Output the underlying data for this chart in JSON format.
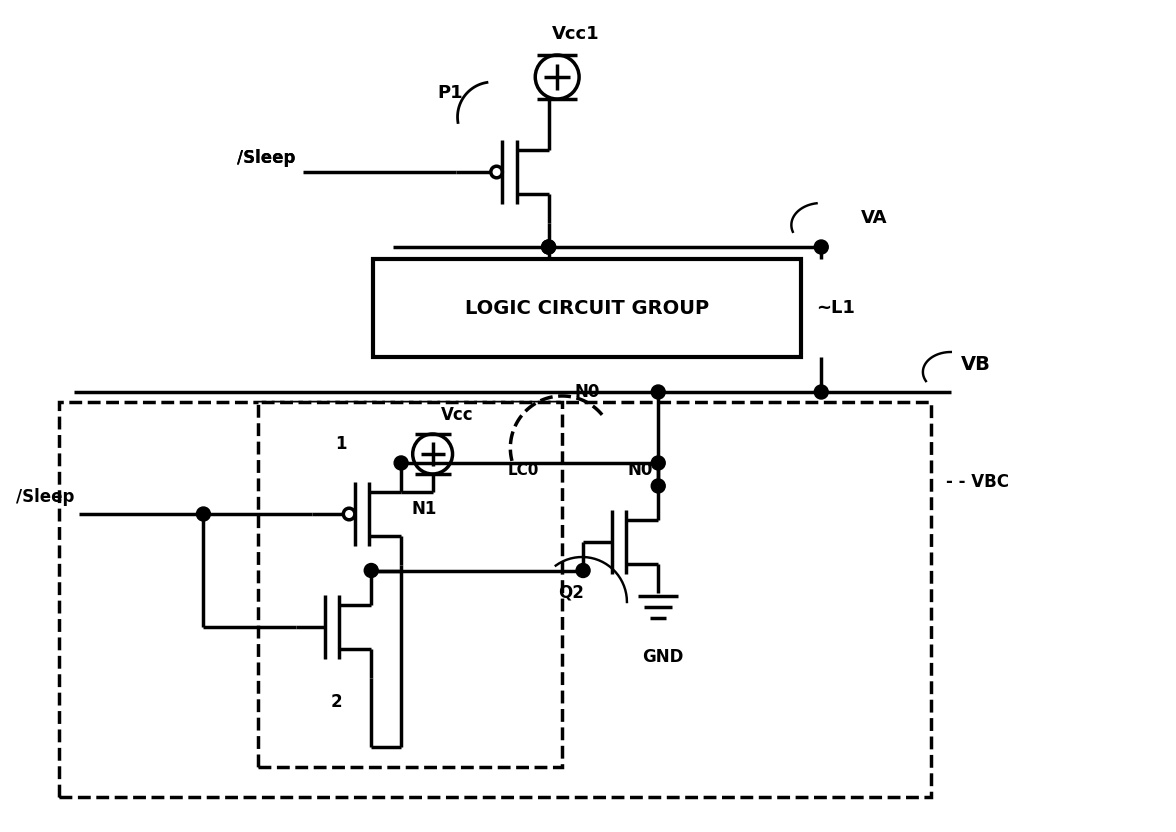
{
  "bg": "#ffffff",
  "lc": "#000000",
  "lw": 2.5,
  "fw": 11.76,
  "fh": 8.32,
  "dpi": 100,
  "xlim": [
    0,
    11.76
  ],
  "ylim": [
    0,
    8.32
  ]
}
